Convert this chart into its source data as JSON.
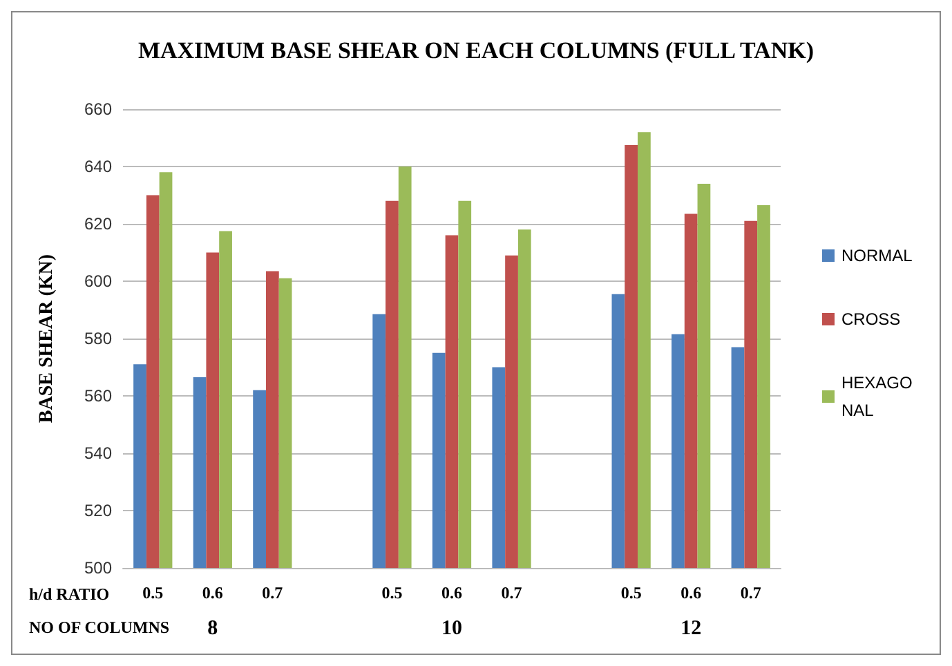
{
  "chart_data": {
    "type": "bar",
    "title": "MAXIMUM BASE SHEAR ON EACH COLUMNS (FULL TANK)",
    "ylabel": "BASE SHEAR (KN)",
    "xlabel": "h/d RATIO",
    "categories": [
      "0.5",
      "0.6",
      "0.7",
      null,
      "0.5",
      "0.6",
      "0.7",
      null,
      "0.5",
      "0.6",
      "0.7"
    ],
    "series": [
      {
        "name": "NORMAL",
        "color": "#4f81bd",
        "values": [
          571,
          566.5,
          562,
          null,
          588.5,
          575,
          570,
          null,
          595.5,
          581.5,
          577
        ]
      },
      {
        "name": "CROSS",
        "color": "#c0504d",
        "values": [
          630,
          610,
          603.5,
          null,
          628,
          616,
          609,
          null,
          647.5,
          623.5,
          621
        ]
      },
      {
        "name": "HEXAGONAL",
        "color": "#9bbb59",
        "values": [
          638,
          617.5,
          601,
          null,
          640,
          628,
          618,
          null,
          652,
          634,
          626.5
        ]
      }
    ],
    "annotations": [
      "NO OF COLUMNS",
      "8",
      "10",
      "12"
    ],
    "ylim": [
      500,
      660
    ],
    "yticks": [
      500,
      520,
      540,
      560,
      580,
      600,
      620,
      640,
      660
    ],
    "grid": "y",
    "legend": "right"
  }
}
